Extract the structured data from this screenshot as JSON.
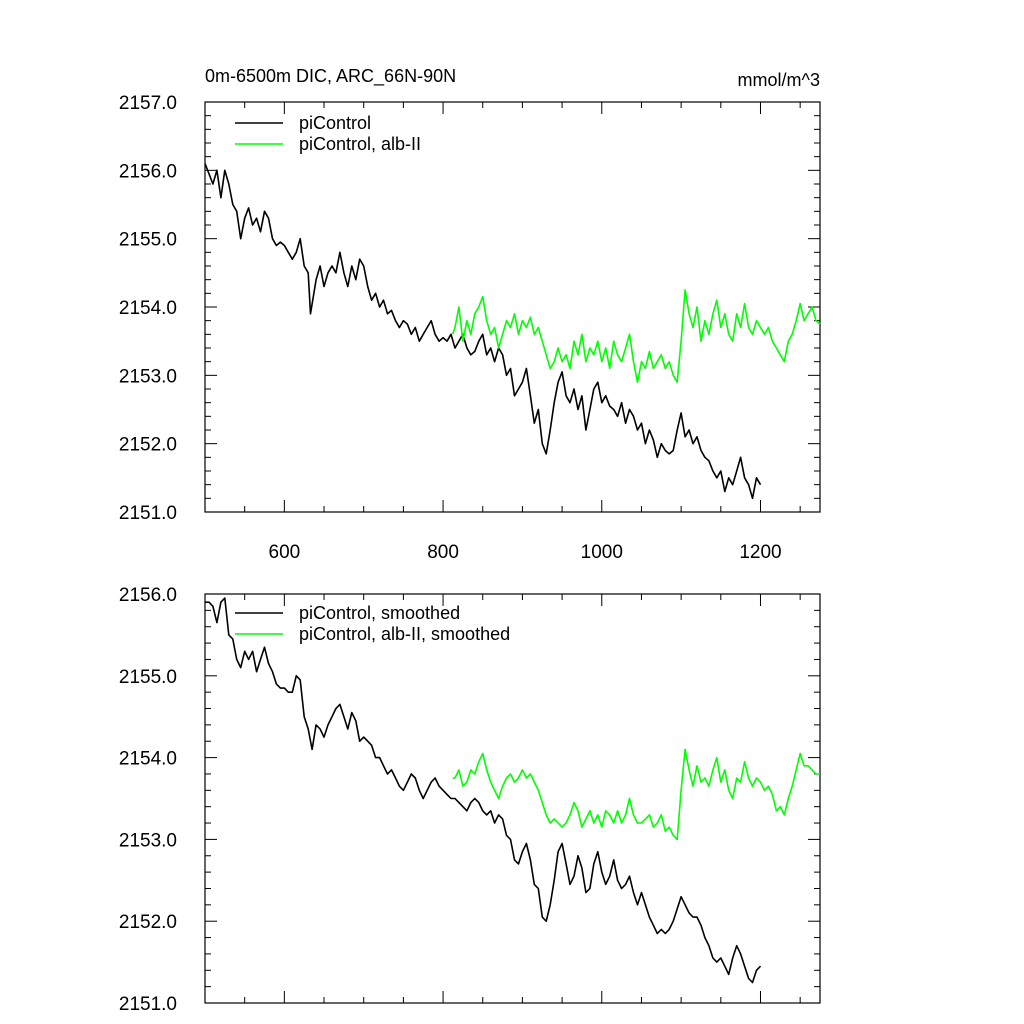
{
  "chart_data": [
    {
      "type": "line",
      "title": "0m-6500m DIC, ARC_66N-90N",
      "units": "mmol/m^3",
      "xlim": [
        500,
        1275
      ],
      "ylim": [
        2151.0,
        2157.0
      ],
      "x_ticks": [
        600,
        800,
        1000,
        1200
      ],
      "x_tick_labels": [
        "600",
        "800",
        "1000",
        "1200"
      ],
      "y_ticks": [
        2151.0,
        2152.0,
        2153.0,
        2154.0,
        2155.0,
        2156.0,
        2157.0
      ],
      "y_tick_labels": [
        "2151.0",
        "2152.0",
        "2153.0",
        "2154.0",
        "2155.0",
        "2156.0",
        "2157.0"
      ],
      "legend": "top-left",
      "grid": false,
      "series": [
        {
          "name": "piControl",
          "color": "#000000",
          "x": [
            500,
            505,
            510,
            515,
            520,
            525,
            530,
            535,
            540,
            545,
            550,
            555,
            560,
            565,
            570,
            575,
            580,
            585,
            590,
            595,
            600,
            605,
            610,
            615,
            620,
            625,
            630,
            633,
            640,
            645,
            650,
            655,
            660,
            665,
            670,
            675,
            680,
            685,
            690,
            695,
            700,
            705,
            710,
            715,
            720,
            725,
            730,
            735,
            740,
            745,
            750,
            755,
            760,
            765,
            770,
            775,
            780,
            785,
            790,
            795,
            800,
            805,
            810,
            815,
            820,
            825,
            830,
            835,
            840,
            845,
            850,
            855,
            860,
            865,
            870,
            875,
            880,
            885,
            890,
            895,
            900,
            905,
            910,
            915,
            920,
            925,
            930,
            935,
            940,
            945,
            950,
            955,
            960,
            965,
            970,
            975,
            980,
            985,
            990,
            995,
            1000,
            1005,
            1010,
            1015,
            1020,
            1025,
            1030,
            1035,
            1040,
            1045,
            1050,
            1055,
            1060,
            1065,
            1070,
            1075,
            1080,
            1085,
            1090,
            1095,
            1100,
            1105,
            1110,
            1115,
            1120,
            1125,
            1130,
            1135,
            1140,
            1145,
            1150,
            1155,
            1160,
            1165,
            1170,
            1175,
            1180,
            1185,
            1190,
            1195,
            1200
          ],
          "values": [
            2156.1,
            2155.95,
            2155.8,
            2156.0,
            2155.6,
            2156.0,
            2155.8,
            2155.5,
            2155.4,
            2155.0,
            2155.3,
            2155.45,
            2155.2,
            2155.3,
            2155.1,
            2155.4,
            2155.3,
            2155.0,
            2154.9,
            2154.95,
            2154.9,
            2154.8,
            2154.7,
            2154.8,
            2155.0,
            2154.6,
            2154.5,
            2153.9,
            2154.4,
            2154.6,
            2154.3,
            2154.5,
            2154.6,
            2154.5,
            2154.8,
            2154.5,
            2154.3,
            2154.6,
            2154.4,
            2154.7,
            2154.6,
            2154.3,
            2154.1,
            2154.2,
            2154.0,
            2154.1,
            2153.9,
            2153.95,
            2153.8,
            2153.7,
            2153.8,
            2153.75,
            2153.6,
            2153.7,
            2153.5,
            2153.6,
            2153.7,
            2153.8,
            2153.6,
            2153.5,
            2153.55,
            2153.5,
            2153.6,
            2153.4,
            2153.5,
            2153.6,
            2153.4,
            2153.3,
            2153.35,
            2153.5,
            2153.6,
            2153.3,
            2153.4,
            2153.2,
            2153.4,
            2153.3,
            2153.0,
            2153.1,
            2152.7,
            2152.8,
            2152.9,
            2153.1,
            2152.7,
            2152.3,
            2152.5,
            2152.0,
            2151.85,
            2152.2,
            2152.6,
            2152.9,
            2153.05,
            2152.7,
            2152.6,
            2152.8,
            2152.5,
            2152.7,
            2152.2,
            2152.5,
            2152.8,
            2152.9,
            2152.6,
            2152.7,
            2152.55,
            2152.5,
            2152.4,
            2152.6,
            2152.3,
            2152.5,
            2152.4,
            2152.2,
            2152.3,
            2152.0,
            2152.2,
            2152.05,
            2151.8,
            2152.0,
            2151.9,
            2151.85,
            2151.9,
            2152.2,
            2152.45,
            2152.1,
            2152.2,
            2152.0,
            2152.1,
            2151.9,
            2151.8,
            2151.75,
            2151.6,
            2151.5,
            2151.6,
            2151.3,
            2151.5,
            2151.4,
            2151.6,
            2151.8,
            2151.5,
            2151.4,
            2151.2,
            2151.5,
            2151.4
          ]
        },
        {
          "name": "piControl, alb-II",
          "color": "#00ff00",
          "x": [
            812,
            815,
            820,
            825,
            830,
            835,
            840,
            845,
            850,
            855,
            860,
            865,
            870,
            875,
            880,
            885,
            890,
            895,
            900,
            905,
            910,
            915,
            920,
            925,
            930,
            935,
            940,
            945,
            950,
            955,
            960,
            965,
            970,
            975,
            980,
            985,
            990,
            995,
            1000,
            1005,
            1010,
            1015,
            1020,
            1025,
            1030,
            1035,
            1040,
            1045,
            1050,
            1055,
            1060,
            1065,
            1070,
            1075,
            1080,
            1085,
            1090,
            1095,
            1100,
            1105,
            1110,
            1115,
            1120,
            1125,
            1130,
            1135,
            1140,
            1145,
            1150,
            1155,
            1160,
            1165,
            1170,
            1175,
            1180,
            1185,
            1190,
            1195,
            1200,
            1205,
            1210,
            1215,
            1220,
            1225,
            1230,
            1235,
            1240,
            1245,
            1250,
            1255,
            1260,
            1265,
            1270,
            1275
          ],
          "values": [
            2153.6,
            2153.7,
            2154.0,
            2153.5,
            2153.8,
            2153.6,
            2153.9,
            2154.0,
            2154.15,
            2153.8,
            2153.6,
            2153.7,
            2153.4,
            2153.6,
            2153.8,
            2153.7,
            2153.9,
            2153.6,
            2153.8,
            2153.7,
            2153.85,
            2153.6,
            2153.7,
            2153.5,
            2153.3,
            2153.1,
            2153.2,
            2153.4,
            2153.2,
            2153.3,
            2153.1,
            2153.5,
            2153.3,
            2153.6,
            2153.2,
            2153.4,
            2153.3,
            2153.5,
            2153.2,
            2153.4,
            2153.1,
            2153.5,
            2153.3,
            2153.2,
            2153.4,
            2153.6,
            2153.2,
            2152.9,
            2153.2,
            2153.1,
            2153.35,
            2153.1,
            2153.2,
            2153.3,
            2153.1,
            2153.2,
            2153.0,
            2152.9,
            2153.5,
            2154.25,
            2153.9,
            2153.7,
            2154.0,
            2153.5,
            2153.8,
            2153.6,
            2153.9,
            2154.1,
            2153.7,
            2153.9,
            2153.6,
            2153.5,
            2153.9,
            2153.7,
            2154.05,
            2153.7,
            2153.6,
            2153.8,
            2153.7,
            2153.6,
            2153.7,
            2153.5,
            2153.4,
            2153.3,
            2153.2,
            2153.5,
            2153.6,
            2153.8,
            2154.05,
            2153.8,
            2153.9,
            2154.0,
            2153.8,
            2153.75
          ]
        }
      ]
    },
    {
      "type": "line",
      "xlim": [
        500,
        1275
      ],
      "ylim": [
        2151.0,
        2156.0
      ],
      "x_ticks": [
        600,
        800,
        1000,
        1200
      ],
      "x_tick_labels": [],
      "y_ticks": [
        2151.0,
        2152.0,
        2153.0,
        2154.0,
        2155.0,
        2156.0
      ],
      "y_tick_labels": [
        "2151.0",
        "2152.0",
        "2153.0",
        "2154.0",
        "2155.0",
        "2156.0"
      ],
      "legend": "top-left",
      "grid": false,
      "series": [
        {
          "name": "piControl, smoothed",
          "color": "#000000",
          "x": [
            500,
            505,
            510,
            515,
            520,
            525,
            530,
            535,
            540,
            545,
            550,
            555,
            560,
            565,
            570,
            575,
            580,
            585,
            590,
            595,
            600,
            605,
            610,
            615,
            620,
            625,
            630,
            635,
            640,
            645,
            650,
            655,
            660,
            665,
            670,
            675,
            680,
            685,
            690,
            695,
            700,
            705,
            710,
            715,
            720,
            725,
            730,
            735,
            740,
            745,
            750,
            755,
            760,
            765,
            770,
            775,
            780,
            785,
            790,
            795,
            800,
            805,
            810,
            815,
            820,
            825,
            830,
            835,
            840,
            845,
            850,
            855,
            860,
            865,
            870,
            875,
            880,
            885,
            890,
            895,
            900,
            905,
            910,
            915,
            920,
            925,
            930,
            935,
            940,
            945,
            950,
            955,
            960,
            965,
            970,
            975,
            980,
            985,
            990,
            995,
            1000,
            1005,
            1010,
            1015,
            1020,
            1025,
            1030,
            1035,
            1040,
            1045,
            1050,
            1055,
            1060,
            1065,
            1070,
            1075,
            1080,
            1085,
            1090,
            1095,
            1100,
            1105,
            1110,
            1115,
            1120,
            1125,
            1130,
            1135,
            1140,
            1145,
            1150,
            1155,
            1160,
            1165,
            1170,
            1175,
            1180,
            1185,
            1190,
            1195,
            1200
          ],
          "values": [
            2155.9,
            2155.9,
            2155.85,
            2155.65,
            2155.9,
            2155.95,
            2155.5,
            2155.45,
            2155.2,
            2155.1,
            2155.3,
            2155.2,
            2155.3,
            2155.05,
            2155.2,
            2155.35,
            2155.15,
            2155.05,
            2154.9,
            2154.85,
            2154.85,
            2154.8,
            2154.8,
            2155.0,
            2154.95,
            2154.5,
            2154.35,
            2154.1,
            2154.4,
            2154.35,
            2154.25,
            2154.4,
            2154.5,
            2154.6,
            2154.65,
            2154.5,
            2154.35,
            2154.55,
            2154.45,
            2154.2,
            2154.25,
            2154.2,
            2154.15,
            2154.0,
            2154.0,
            2153.9,
            2153.8,
            2153.85,
            2153.75,
            2153.65,
            2153.6,
            2153.7,
            2153.8,
            2153.75,
            2153.6,
            2153.5,
            2153.6,
            2153.7,
            2153.75,
            2153.65,
            2153.6,
            2153.55,
            2153.5,
            2153.5,
            2153.45,
            2153.4,
            2153.35,
            2153.45,
            2153.5,
            2153.45,
            2153.35,
            2153.3,
            2153.35,
            2153.2,
            2153.3,
            2153.25,
            2153.05,
            2153.0,
            2152.75,
            2152.7,
            2152.85,
            2152.95,
            2152.75,
            2152.45,
            2152.4,
            2152.05,
            2152.0,
            2152.2,
            2152.5,
            2152.85,
            2152.95,
            2152.7,
            2152.45,
            2152.55,
            2152.8,
            2152.65,
            2152.35,
            2152.4,
            2152.7,
            2152.85,
            2152.6,
            2152.45,
            2152.55,
            2152.75,
            2152.5,
            2152.4,
            2152.45,
            2152.55,
            2152.35,
            2152.2,
            2152.35,
            2152.2,
            2152.05,
            2151.95,
            2151.85,
            2151.9,
            2151.85,
            2151.9,
            2152.0,
            2152.15,
            2152.3,
            2152.2,
            2152.1,
            2152.05,
            2152.05,
            2151.95,
            2151.8,
            2151.7,
            2151.55,
            2151.5,
            2151.55,
            2151.45,
            2151.35,
            2151.55,
            2151.7,
            2151.6,
            2151.45,
            2151.3,
            2151.25,
            2151.4,
            2151.45
          ]
        },
        {
          "name": "piControl, alb-II, smoothed",
          "color": "#00ff00",
          "x": [
            812,
            815,
            820,
            825,
            830,
            835,
            840,
            845,
            850,
            855,
            860,
            865,
            870,
            875,
            880,
            885,
            890,
            895,
            900,
            905,
            910,
            915,
            920,
            925,
            930,
            935,
            940,
            945,
            950,
            955,
            960,
            965,
            970,
            975,
            980,
            985,
            990,
            995,
            1000,
            1005,
            1010,
            1015,
            1020,
            1025,
            1030,
            1035,
            1040,
            1045,
            1050,
            1055,
            1060,
            1065,
            1070,
            1075,
            1080,
            1085,
            1090,
            1095,
            1100,
            1105,
            1110,
            1115,
            1120,
            1125,
            1130,
            1135,
            1140,
            1145,
            1150,
            1155,
            1160,
            1165,
            1170,
            1175,
            1180,
            1185,
            1190,
            1195,
            1200,
            1205,
            1210,
            1215,
            1220,
            1225,
            1230,
            1235,
            1240,
            1245,
            1250,
            1255,
            1260,
            1265,
            1270,
            1275
          ],
          "values": [
            2153.75,
            2153.75,
            2153.85,
            2153.65,
            2153.7,
            2153.85,
            2153.8,
            2153.95,
            2154.05,
            2153.85,
            2153.7,
            2153.6,
            2153.5,
            2153.65,
            2153.75,
            2153.8,
            2153.7,
            2153.75,
            2153.85,
            2153.75,
            2153.8,
            2153.7,
            2153.6,
            2153.45,
            2153.3,
            2153.2,
            2153.25,
            2153.2,
            2153.15,
            2153.2,
            2153.3,
            2153.45,
            2153.35,
            2153.15,
            2153.25,
            2153.35,
            2153.2,
            2153.3,
            2153.15,
            2153.35,
            2153.3,
            2153.2,
            2153.35,
            2153.2,
            2153.3,
            2153.5,
            2153.3,
            2153.2,
            2153.2,
            2153.25,
            2153.3,
            2153.15,
            2153.2,
            2153.3,
            2153.1,
            2153.15,
            2153.05,
            2153.0,
            2153.6,
            2154.1,
            2153.85,
            2153.65,
            2153.9,
            2153.7,
            2153.75,
            2153.65,
            2153.85,
            2154.0,
            2153.7,
            2153.85,
            2153.6,
            2153.5,
            2153.75,
            2153.7,
            2153.95,
            2153.75,
            2153.65,
            2153.75,
            2153.7,
            2153.6,
            2153.65,
            2153.55,
            2153.35,
            2153.4,
            2153.3,
            2153.5,
            2153.65,
            2153.85,
            2154.05,
            2153.9,
            2153.9,
            2153.85,
            2153.8,
            2153.8
          ]
        }
      ]
    }
  ]
}
